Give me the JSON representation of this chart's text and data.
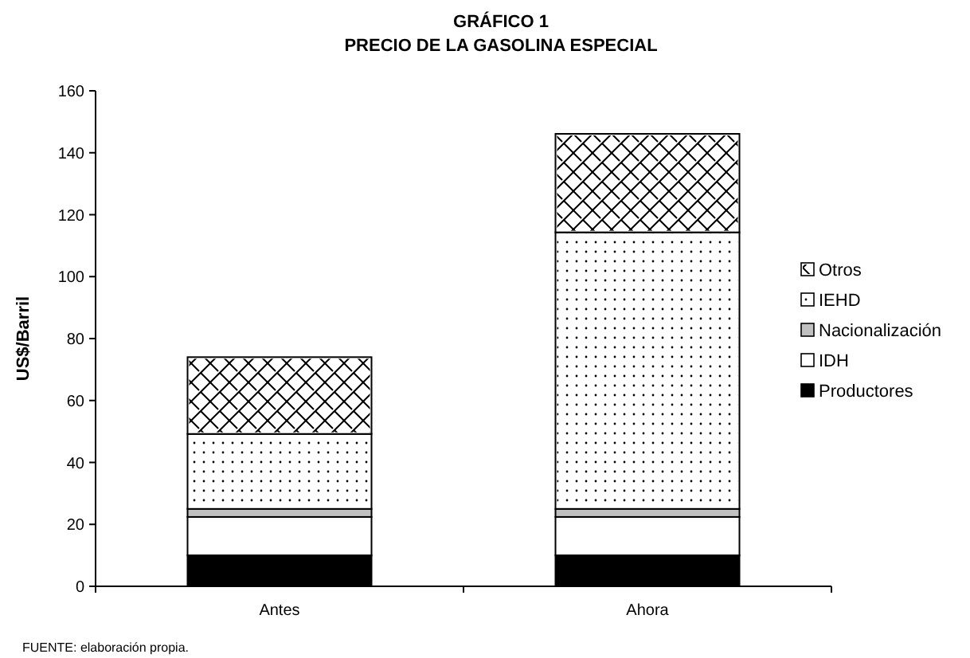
{
  "chart_data": {
    "type": "bar",
    "title": "GRÁFICO 1",
    "subtitle": "PRECIO DE LA GASOLINA ESPECIAL",
    "ylabel": "US$/Barril",
    "annotations": [
      "FUENTE: elaboración propia."
    ],
    "categories": [
      "Antes",
      "Ahora"
    ],
    "stacked": true,
    "ylim": [
      0,
      160
    ],
    "yticks": [
      0,
      20,
      40,
      60,
      80,
      100,
      120,
      140,
      160
    ],
    "grid": false,
    "legend": "right",
    "series": [
      {
        "name": "Productores",
        "color": "#000000",
        "values": [
          10,
          10
        ]
      },
      {
        "name": "IDH",
        "color": "#ffffff",
        "values": [
          12.4,
          12.4
        ]
      },
      {
        "name": "Nacionalización",
        "color": "#c0c0c0",
        "values": [
          2.6,
          2.6
        ]
      },
      {
        "name": "IEHD",
        "color": "#ffffff",
        "values": [
          24.2,
          89.3
        ]
      },
      {
        "name": "Otros",
        "color": "#ffffff",
        "values": [
          24.8,
          31.8
        ]
      }
    ]
  }
}
